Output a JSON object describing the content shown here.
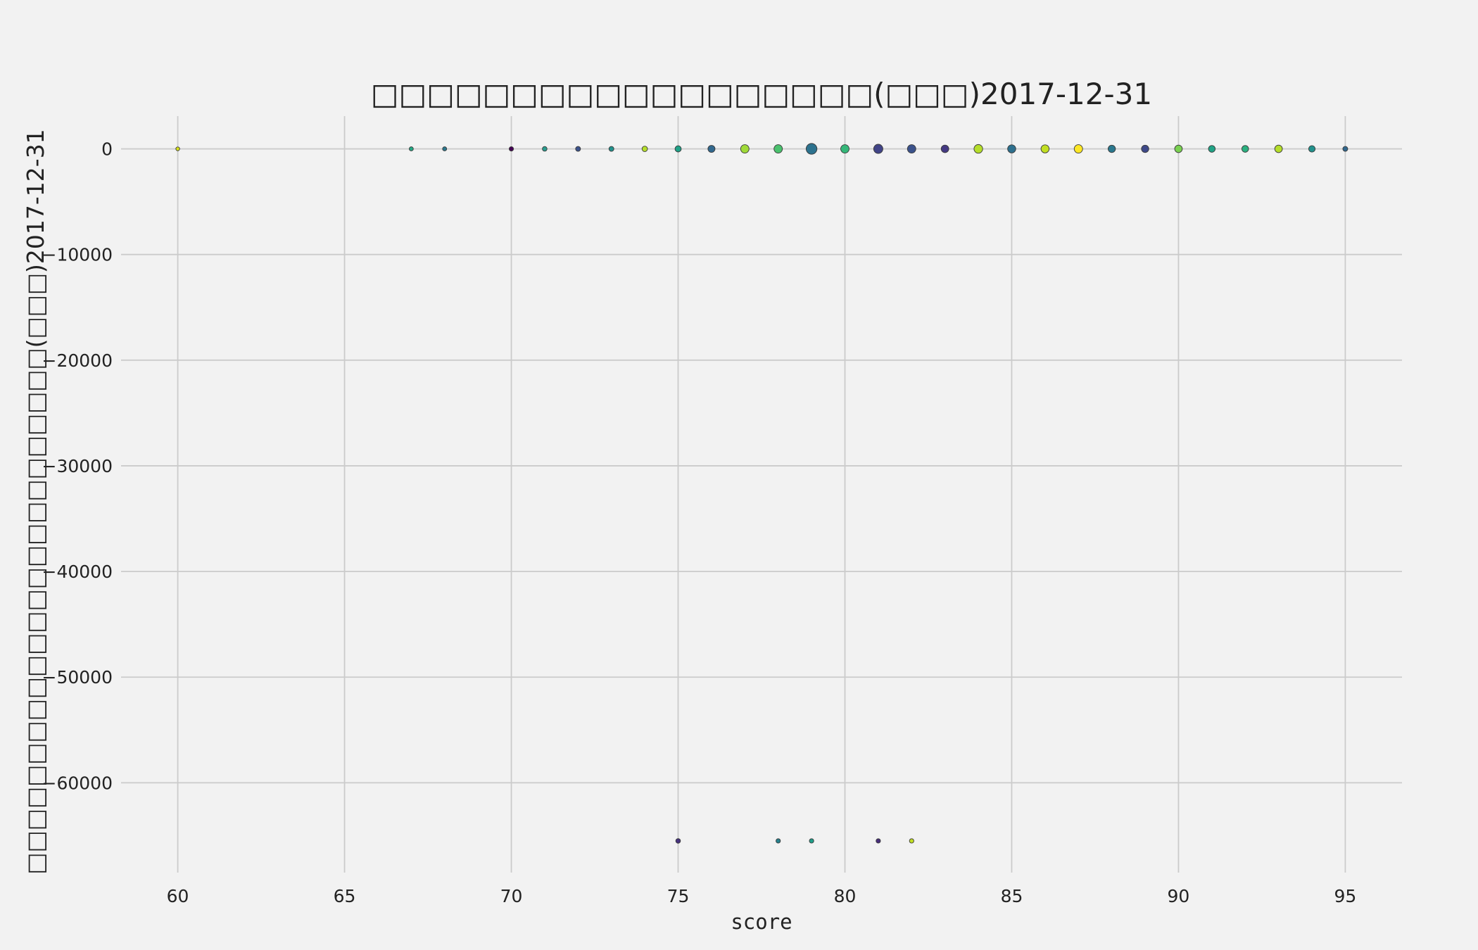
{
  "chart_data": {
    "type": "scatter",
    "title": "□□□□□□□□□□□□□□□□□□(□□□)2017-12-31",
    "xlabel": "score",
    "ylabel": "□□□□□□□□□□□□□□□□□□□□□□□□(□□□)2017-12-31",
    "xlim": [
      58.3,
      96.7
    ],
    "ylim": [
      -68500,
      3100
    ],
    "xticks": [
      60,
      65,
      70,
      75,
      80,
      85,
      90,
      95
    ],
    "yticks": [
      0,
      -10000,
      -20000,
      -30000,
      -40000,
      -50000,
      -60000
    ],
    "grid": true,
    "points": [
      {
        "x": 60,
        "y": 0,
        "s": 0.6,
        "color": "#d8e219"
      },
      {
        "x": 67,
        "y": 0,
        "s": 0.7,
        "color": "#22a884"
      },
      {
        "x": 68,
        "y": 0,
        "s": 0.7,
        "color": "#2a788e"
      },
      {
        "x": 70,
        "y": 0,
        "s": 0.8,
        "color": "#440154"
      },
      {
        "x": 71,
        "y": 0,
        "s": 0.9,
        "color": "#2a9d8f"
      },
      {
        "x": 72,
        "y": 0,
        "s": 1.0,
        "color": "#3b528b"
      },
      {
        "x": 73,
        "y": 0,
        "s": 1.0,
        "color": "#21918c"
      },
      {
        "x": 74,
        "y": 0,
        "s": 1.2,
        "color": "#b5de2b"
      },
      {
        "x": 75,
        "y": 0,
        "s": 1.5,
        "color": "#1fa187"
      },
      {
        "x": 76,
        "y": 0,
        "s": 1.8,
        "color": "#31688e"
      },
      {
        "x": 77,
        "y": 0,
        "s": 2.3,
        "color": "#a0da39"
      },
      {
        "x": 78,
        "y": 0,
        "s": 2.3,
        "color": "#4ac16d"
      },
      {
        "x": 79,
        "y": 0,
        "s": 3.2,
        "color": "#2c728e"
      },
      {
        "x": 80,
        "y": 0,
        "s": 2.3,
        "color": "#35b779"
      },
      {
        "x": 81,
        "y": 0,
        "s": 2.6,
        "color": "#414487"
      },
      {
        "x": 82,
        "y": 0,
        "s": 2.3,
        "color": "#3b528b"
      },
      {
        "x": 83,
        "y": 0,
        "s": 2.0,
        "color": "#443983"
      },
      {
        "x": 84,
        "y": 0,
        "s": 2.4,
        "color": "#b5de2b"
      },
      {
        "x": 85,
        "y": 0,
        "s": 2.2,
        "color": "#2d708e"
      },
      {
        "x": 86,
        "y": 0,
        "s": 2.2,
        "color": "#c2df23"
      },
      {
        "x": 87,
        "y": 0,
        "s": 2.3,
        "color": "#fde725"
      },
      {
        "x": 88,
        "y": 0,
        "s": 1.9,
        "color": "#2a788e"
      },
      {
        "x": 89,
        "y": 0,
        "s": 1.9,
        "color": "#3e4989"
      },
      {
        "x": 90,
        "y": 0,
        "s": 2.0,
        "color": "#7ad151"
      },
      {
        "x": 91,
        "y": 0,
        "s": 1.7,
        "color": "#20a386"
      },
      {
        "x": 92,
        "y": 0,
        "s": 1.7,
        "color": "#2ab07f"
      },
      {
        "x": 93,
        "y": 0,
        "s": 2.0,
        "color": "#b5de2b"
      },
      {
        "x": 94,
        "y": 0,
        "s": 1.6,
        "color": "#21918c"
      },
      {
        "x": 95,
        "y": 0,
        "s": 1.0,
        "color": "#31688e"
      },
      {
        "x": 75,
        "y": -65500,
        "s": 0.9,
        "color": "#46327e"
      },
      {
        "x": 78,
        "y": -65500,
        "s": 0.8,
        "color": "#26828e"
      },
      {
        "x": 79,
        "y": -65500,
        "s": 0.8,
        "color": "#1f9e89"
      },
      {
        "x": 81,
        "y": -65500,
        "s": 0.8,
        "color": "#472d7b"
      },
      {
        "x": 82,
        "y": -65500,
        "s": 0.8,
        "color": "#c2df23"
      }
    ]
  }
}
